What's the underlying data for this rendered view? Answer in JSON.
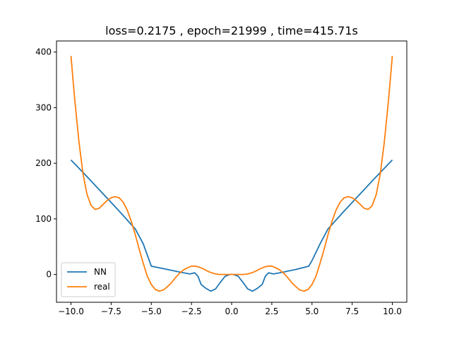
{
  "chart_data": {
    "type": "line",
    "title": "loss=0.2175 , epoch=21999 , time=415.71s",
    "xlabel": "",
    "ylabel": "",
    "xlim": [
      -10.9,
      10.9
    ],
    "ylim": [
      -50,
      420
    ],
    "xticks": [
      -10.0,
      -7.5,
      -5.0,
      -2.5,
      0.0,
      2.5,
      5.0,
      7.5,
      10.0
    ],
    "xtick_labels": [
      "−10.0",
      "−7.5",
      "−5.0",
      "−2.5",
      "0.0",
      "2.5",
      "5.0",
      "7.5",
      "10.0"
    ],
    "yticks": [
      0,
      100,
      200,
      300,
      400
    ],
    "ytick_labels": [
      "0",
      "100",
      "200",
      "300",
      "400"
    ],
    "grid": false,
    "legend": "lower-left",
    "series": [
      {
        "name": "NN",
        "color": "#1f77b4",
        "x": [
          -10.0,
          -9.0,
          -8.0,
          -7.0,
          -6.0,
          -5.5,
          -5.0,
          -4.0,
          -3.0,
          -2.6,
          -2.3,
          -2.1,
          -1.9,
          -1.6,
          -1.3,
          -1.0,
          -0.7,
          -0.4,
          -0.1,
          0.0,
          0.1,
          0.4,
          0.7,
          1.0,
          1.3,
          1.6,
          1.9,
          2.1,
          2.3,
          2.6,
          3.0,
          4.0,
          4.8,
          5.0,
          5.5,
          6.0,
          7.0,
          8.0,
          9.0,
          10.0
        ],
        "y": [
          206,
          176,
          145,
          114,
          82,
          55,
          15,
          9,
          3,
          1,
          3,
          -3,
          -18,
          -25,
          -30,
          -26,
          -14,
          -3,
          0,
          0,
          0,
          -3,
          -14,
          -26,
          -30,
          -25,
          -18,
          -3,
          3,
          1,
          3,
          9,
          15,
          25,
          55,
          82,
          114,
          145,
          176,
          206
        ]
      },
      {
        "name": "real",
        "color": "#ff7f0e",
        "x": [
          -10.0,
          -9.75,
          -9.5,
          -9.25,
          -9.0,
          -8.75,
          -8.5,
          -8.25,
          -8.0,
          -7.75,
          -7.5,
          -7.25,
          -7.0,
          -6.75,
          -6.5,
          -6.25,
          -6.0,
          -5.75,
          -5.5,
          -5.25,
          -5.0,
          -4.75,
          -4.5,
          -4.25,
          -4.0,
          -3.75,
          -3.5,
          -3.25,
          -3.0,
          -2.75,
          -2.5,
          -2.25,
          -2.0,
          -1.75,
          -1.5,
          -1.25,
          -1.0,
          -0.75,
          -0.5,
          -0.25,
          0.0,
          0.25,
          0.5,
          0.75,
          1.0,
          1.25,
          1.5,
          1.75,
          2.0,
          2.25,
          2.5,
          2.75,
          3.0,
          3.25,
          3.5,
          3.75,
          4.0,
          4.25,
          4.5,
          4.75,
          5.0,
          5.25,
          5.5,
          5.75,
          6.0,
          6.25,
          6.5,
          6.75,
          7.0,
          7.25,
          7.5,
          7.75,
          8.0,
          8.25,
          8.5,
          8.75,
          9.0,
          9.25,
          9.5,
          9.75,
          10.0
        ],
        "y": [
          393,
          310,
          238,
          181,
          144,
          124,
          117,
          119,
          126,
          133,
          138,
          140,
          138,
          130,
          116,
          96,
          72,
          45,
          20,
          -3,
          -18,
          -27,
          -30,
          -28,
          -22,
          -15,
          -6,
          2,
          8,
          12,
          15,
          15,
          13,
          10,
          6,
          3,
          1,
          0,
          0,
          0,
          0,
          0,
          0,
          0,
          1,
          3,
          6,
          10,
          13,
          15,
          15,
          12,
          8,
          2,
          -6,
          -15,
          -22,
          -28,
          -30,
          -27,
          -18,
          -3,
          20,
          45,
          72,
          96,
          116,
          130,
          138,
          140,
          138,
          133,
          126,
          119,
          117,
          124,
          144,
          181,
          238,
          310,
          393
        ]
      }
    ]
  }
}
